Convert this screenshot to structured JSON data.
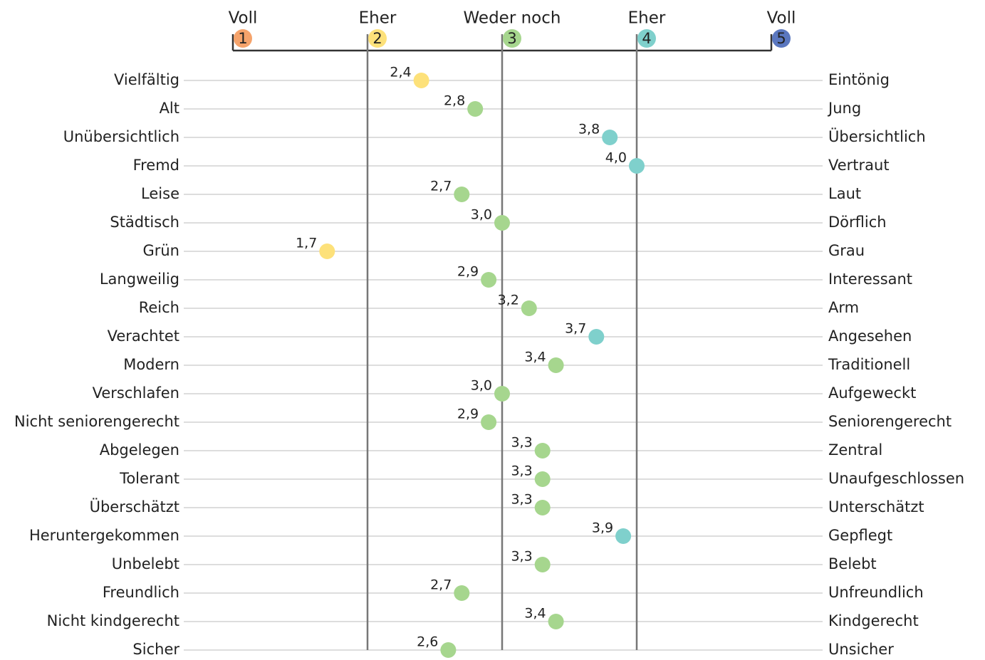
{
  "chart_data": {
    "type": "dot",
    "categories": [
      "Vielfältig",
      "Alt",
      "Unübersichtlich",
      "Fremd",
      "Leise",
      "Städtisch",
      "Grün",
      "Langweilig",
      "Reich",
      "Verachtet",
      "Modern",
      "Verschlafen",
      "Nicht seniorengerecht",
      "Abgelegen",
      "Tolerant",
      "Überschätzt",
      "Heruntergekommen",
      "Unbelebt",
      "Freundlich",
      "Nicht kindgerecht",
      "Sicher"
    ],
    "right_categories": [
      "Eintönig",
      "Jung",
      "Übersichtlich",
      "Vertraut",
      "Laut",
      "Dörflich",
      "Grau",
      "Interessant",
      "Arm",
      "Angesehen",
      "Traditionell",
      "Aufgeweckt",
      "Seniorengerecht",
      "Zentral",
      "Unaufgeschlossen",
      "Unterschätzt",
      "Gepflegt",
      "Belebt",
      "Unfreundlich",
      "Kindgerecht",
      "Unsicher"
    ],
    "values": [
      2.4,
      2.8,
      3.8,
      4.0,
      2.7,
      3.0,
      1.7,
      2.9,
      3.2,
      3.7,
      3.4,
      3.0,
      2.9,
      3.3,
      3.3,
      3.3,
      3.9,
      3.3,
      2.7,
      3.4,
      2.6
    ],
    "value_labels": [
      "2,4",
      "2,8",
      "3,8",
      "4,0",
      "2,7",
      "3,0",
      "1,7",
      "2,9",
      "3,2",
      "3,7",
      "3,4",
      "3,0",
      "2,9",
      "3,3",
      "3,3",
      "3,3",
      "3,9",
      "3,3",
      "2,7",
      "3,4",
      "2,6"
    ],
    "colors": [
      "#fde17a",
      "#a6d68e",
      "#7fd0cc",
      "#7fd0cc",
      "#a6d68e",
      "#a6d68e",
      "#fde17a",
      "#a6d68e",
      "#a6d68e",
      "#7fd0cc",
      "#a6d68e",
      "#a6d68e",
      "#a6d68e",
      "#a6d68e",
      "#a6d68e",
      "#a6d68e",
      "#7fd0cc",
      "#a6d68e",
      "#a6d68e",
      "#a6d68e",
      "#a6d68e"
    ],
    "xlim": [
      1,
      5
    ],
    "xticks": [
      1,
      2,
      3,
      4,
      5
    ],
    "scale_labels": [
      "Voll",
      "Eher",
      "Weder noch",
      "Eher",
      "Voll"
    ],
    "scale_colors": [
      "#f5a36b",
      "#fde17a",
      "#a6d68e",
      "#7fd0cc",
      "#5a77bf"
    ]
  }
}
